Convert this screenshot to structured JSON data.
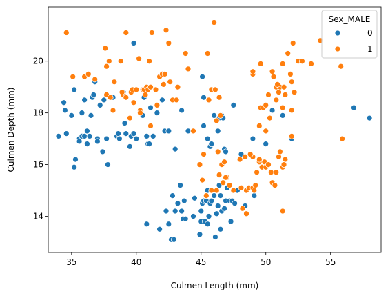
{
  "chart_data": {
    "type": "scatter",
    "title": "",
    "xlabel": "Culmen Length (mm)",
    "ylabel": "Culmen Depth (mm)",
    "xlim": [
      33.2,
      58.9
    ],
    "ylim": [
      12.6,
      22.1
    ],
    "xticks": [
      35,
      40,
      45,
      50,
      55
    ],
    "yticks": [
      14,
      16,
      18,
      20
    ],
    "grid": false,
    "legend": {
      "title": "Sex_MALE",
      "placement": "top-right"
    },
    "series": [
      {
        "name": "0",
        "color": "#1f77b4",
        "points": [
          [
            34.0,
            17.1
          ],
          [
            34.5,
            18.1
          ],
          [
            34.4,
            18.4
          ],
          [
            34.6,
            17.2
          ],
          [
            35.0,
            17.9
          ],
          [
            35.2,
            18.9
          ],
          [
            35.3,
            16.2
          ],
          [
            35.2,
            15.9
          ],
          [
            35.6,
            17.0
          ],
          [
            35.6,
            16.9
          ],
          [
            35.8,
            18.0
          ],
          [
            35.8,
            17.1
          ],
          [
            36.0,
            17.1
          ],
          [
            36.0,
            18.5
          ],
          [
            36.2,
            16.8
          ],
          [
            36.2,
            17.3
          ],
          [
            36.4,
            17.1
          ],
          [
            36.5,
            17.9
          ],
          [
            36.6,
            18.6
          ],
          [
            36.7,
            18.7
          ],
          [
            36.8,
            19.2
          ],
          [
            37.0,
            17.0
          ],
          [
            37.0,
            16.9
          ],
          [
            37.2,
            18.3
          ],
          [
            37.4,
            16.5
          ],
          [
            37.5,
            18.5
          ],
          [
            37.7,
            17.0
          ],
          [
            37.8,
            16.0
          ],
          [
            38.0,
            18.6
          ],
          [
            38.1,
            18.6
          ],
          [
            38.2,
            18.6
          ],
          [
            38.5,
            17.1
          ],
          [
            38.6,
            17.2
          ],
          [
            38.7,
            17.0
          ],
          [
            39.0,
            18.8
          ],
          [
            39.1,
            17.6
          ],
          [
            39.2,
            17.2
          ],
          [
            39.5,
            16.7
          ],
          [
            39.6,
            17.1
          ],
          [
            39.8,
            17.2
          ],
          [
            39.8,
            20.7
          ],
          [
            40.0,
            17.0
          ],
          [
            40.5,
            17.9
          ],
          [
            40.6,
            18.6
          ],
          [
            40.8,
            17.1
          ],
          [
            40.9,
            16.8
          ],
          [
            41.0,
            16.8
          ],
          [
            41.1,
            18.2
          ],
          [
            41.3,
            17.1
          ],
          [
            41.6,
            18.0
          ],
          [
            42.0,
            18.5
          ],
          [
            42.2,
            17.3
          ],
          [
            42.5,
            17.3
          ],
          [
            43.0,
            16.6
          ],
          [
            43.5,
            18.1
          ],
          [
            44.0,
            17.3
          ],
          [
            45.2,
            17.5
          ],
          [
            45.1,
            19.4
          ],
          [
            45.2,
            18.6
          ],
          [
            45.5,
            17.0
          ],
          [
            45.7,
            16.7
          ],
          [
            45.8,
            16.8
          ],
          [
            46.0,
            17.9
          ],
          [
            46.3,
            17.3
          ],
          [
            46.4,
            17.8
          ],
          [
            46.6,
            17.9
          ],
          [
            46.7,
            17.8
          ],
          [
            46.8,
            16.6
          ],
          [
            46.9,
            16.5
          ],
          [
            47.5,
            18.3
          ],
          [
            48.1,
            16.4
          ],
          [
            49.0,
            17.0
          ],
          [
            50.0,
            17.3
          ],
          [
            50.0,
            16.8
          ],
          [
            50.5,
            18.1
          ],
          [
            51.3,
            17.9
          ],
          [
            52.0,
            17.0
          ],
          [
            56.8,
            18.2
          ],
          [
            58.0,
            17.8
          ],
          [
            40.8,
            13.7
          ],
          [
            41.8,
            13.5
          ],
          [
            42.3,
            14.2
          ],
          [
            42.5,
            13.7
          ],
          [
            42.7,
            13.1
          ],
          [
            42.8,
            14.8
          ],
          [
            43.0,
            14.2
          ],
          [
            43.2,
            14.5
          ],
          [
            43.4,
            15.2
          ],
          [
            43.5,
            14.2
          ],
          [
            43.6,
            13.9
          ],
          [
            43.8,
            13.9
          ],
          [
            44.5,
            14.7
          ],
          [
            44.9,
            13.3
          ],
          [
            45.0,
            13.8
          ],
          [
            45.0,
            14.2
          ],
          [
            45.1,
            14.5
          ],
          [
            45.2,
            14.6
          ],
          [
            45.3,
            13.8
          ],
          [
            45.4,
            14.6
          ],
          [
            45.5,
            15.0
          ],
          [
            45.5,
            13.7
          ],
          [
            45.7,
            14.5
          ],
          [
            45.8,
            14.6
          ],
          [
            46.0,
            14.8
          ],
          [
            46.1,
            13.2
          ],
          [
            46.2,
            14.1
          ],
          [
            46.3,
            14.4
          ],
          [
            46.4,
            15.2
          ],
          [
            46.5,
            14.8
          ],
          [
            46.5,
            13.5
          ],
          [
            46.6,
            14.2
          ],
          [
            46.8,
            14.3
          ],
          [
            46.9,
            14.6
          ],
          [
            47.0,
            15.1
          ],
          [
            47.2,
            14.6
          ],
          [
            47.3,
            13.8
          ],
          [
            47.4,
            14.6
          ],
          [
            47.6,
            14.5
          ],
          [
            47.8,
            15.0
          ],
          [
            48.4,
            14.4
          ],
          [
            48.5,
            14.1
          ],
          [
            49.1,
            14.8
          ],
          [
            44.4,
            14.0
          ],
          [
            42.9,
            13.1
          ],
          [
            43.7,
            14.6
          ],
          [
            45.6,
            14.0
          ]
        ]
      },
      {
        "name": "1",
        "color": "#ff7f0e",
        "points": [
          [
            34.6,
            21.1
          ],
          [
            35.1,
            19.4
          ],
          [
            36.0,
            19.4
          ],
          [
            36.3,
            19.5
          ],
          [
            36.8,
            19.3
          ],
          [
            37.6,
            20.5
          ],
          [
            37.7,
            19.8
          ],
          [
            37.7,
            18.7
          ],
          [
            37.9,
            20.0
          ],
          [
            38.0,
            18.6
          ],
          [
            38.2,
            18.1
          ],
          [
            38.3,
            19.2
          ],
          [
            38.8,
            20.0
          ],
          [
            39.0,
            18.7
          ],
          [
            39.2,
            21.1
          ],
          [
            39.2,
            18.6
          ],
          [
            39.5,
            17.8
          ],
          [
            39.6,
            18.8
          ],
          [
            39.7,
            18.9
          ],
          [
            39.8,
            18.4
          ],
          [
            40.0,
            18.9
          ],
          [
            40.2,
            20.1
          ],
          [
            40.3,
            18.1
          ],
          [
            40.5,
            18.9
          ],
          [
            40.6,
            18.9
          ],
          [
            40.7,
            18.7
          ],
          [
            40.8,
            19.0
          ],
          [
            40.9,
            18.9
          ],
          [
            41.0,
            20.0
          ],
          [
            41.1,
            19.0
          ],
          [
            41.1,
            17.5
          ],
          [
            41.2,
            21.1
          ],
          [
            41.5,
            18.9
          ],
          [
            41.6,
            18.3
          ],
          [
            41.8,
            19.4
          ],
          [
            42.0,
            19.5
          ],
          [
            42.1,
            19.1
          ],
          [
            42.2,
            19.5
          ],
          [
            42.3,
            21.2
          ],
          [
            42.5,
            20.7
          ],
          [
            42.8,
            18.5
          ],
          [
            43.1,
            18.5
          ],
          [
            43.2,
            19.0
          ],
          [
            44.0,
            19.7
          ],
          [
            44.4,
            17.3
          ],
          [
            45.2,
            16.4
          ],
          [
            45.5,
            20.3
          ],
          [
            45.8,
            18.9
          ],
          [
            46.0,
            21.5
          ],
          [
            46.1,
            18.9
          ],
          [
            46.2,
            17.7
          ],
          [
            46.5,
            17.9
          ],
          [
            46.6,
            16.0
          ],
          [
            46.8,
            16.1
          ],
          [
            47.0,
            15.5
          ],
          [
            47.5,
            15.0
          ],
          [
            45.1,
            15.4
          ],
          [
            45.4,
            14.8
          ],
          [
            45.8,
            15.0
          ],
          [
            46.2,
            15.0
          ],
          [
            46.4,
            15.6
          ],
          [
            46.7,
            15.3
          ],
          [
            46.9,
            15.5
          ],
          [
            47.2,
            15.2
          ],
          [
            47.5,
            15.0
          ],
          [
            48.1,
            15.1
          ],
          [
            48.2,
            14.3
          ],
          [
            48.5,
            15.0
          ],
          [
            48.5,
            14.1
          ],
          [
            48.7,
            15.1
          ],
          [
            49.0,
            15.1
          ],
          [
            49.2,
            15.2
          ],
          [
            49.3,
            15.7
          ],
          [
            49.5,
            16.1
          ],
          [
            49.5,
            16.2
          ],
          [
            49.7,
            15.9
          ],
          [
            49.9,
            16.1
          ],
          [
            50.0,
            15.9
          ],
          [
            50.2,
            16.0
          ],
          [
            50.4,
            15.7
          ],
          [
            50.5,
            15.3
          ],
          [
            50.7,
            15.2
          ],
          [
            50.8,
            15.7
          ],
          [
            51.0,
            16.3
          ],
          [
            51.1,
            16.5
          ],
          [
            51.3,
            15.9
          ],
          [
            51.3,
            14.2
          ],
          [
            51.5,
            16.2
          ],
          [
            51.4,
            16.0
          ],
          [
            48.0,
            16.2
          ],
          [
            48.4,
            16.3
          ],
          [
            49.0,
            16.3
          ],
          [
            49.5,
            17.5
          ],
          [
            50.0,
            17.3
          ],
          [
            52.0,
            17.1
          ],
          [
            55.9,
            17.0
          ],
          [
            49.0,
            19.5
          ],
          [
            49.0,
            19.6
          ],
          [
            49.6,
            18.2
          ],
          [
            49.8,
            18.2
          ],
          [
            50.0,
            18.3
          ],
          [
            50.2,
            18.7
          ],
          [
            50.5,
            19.6
          ],
          [
            50.6,
            19.4
          ],
          [
            50.8,
            18.5
          ],
          [
            50.8,
            19.0
          ],
          [
            51.0,
            18.8
          ],
          [
            51.1,
            19.0
          ],
          [
            51.3,
            19.9
          ],
          [
            51.3,
            18.2
          ],
          [
            51.4,
            19.0
          ],
          [
            51.5,
            18.7
          ],
          [
            51.7,
            20.3
          ],
          [
            51.9,
            19.5
          ],
          [
            52.0,
            18.1
          ],
          [
            52.0,
            19.2
          ],
          [
            52.2,
            18.8
          ],
          [
            52.5,
            20.0
          ],
          [
            52.8,
            20.0
          ],
          [
            53.5,
            19.9
          ],
          [
            54.2,
            20.8
          ],
          [
            55.8,
            19.8
          ],
          [
            49.6,
            19.9
          ],
          [
            50.9,
            19.1
          ],
          [
            45.6,
            18.5
          ],
          [
            43.8,
            20.3
          ],
          [
            46.4,
            18.6
          ],
          [
            52.1,
            20.7
          ],
          [
            48.8,
            16.4
          ],
          [
            49.1,
            15.0
          ],
          [
            50.3,
            17.8
          ],
          [
            44.9,
            16.0
          ],
          [
            46.3,
            16.5
          ],
          [
            42.6,
            19.2
          ],
          [
            40.3,
            18.0
          ],
          [
            38.9,
            18.8
          ]
        ]
      }
    ]
  }
}
